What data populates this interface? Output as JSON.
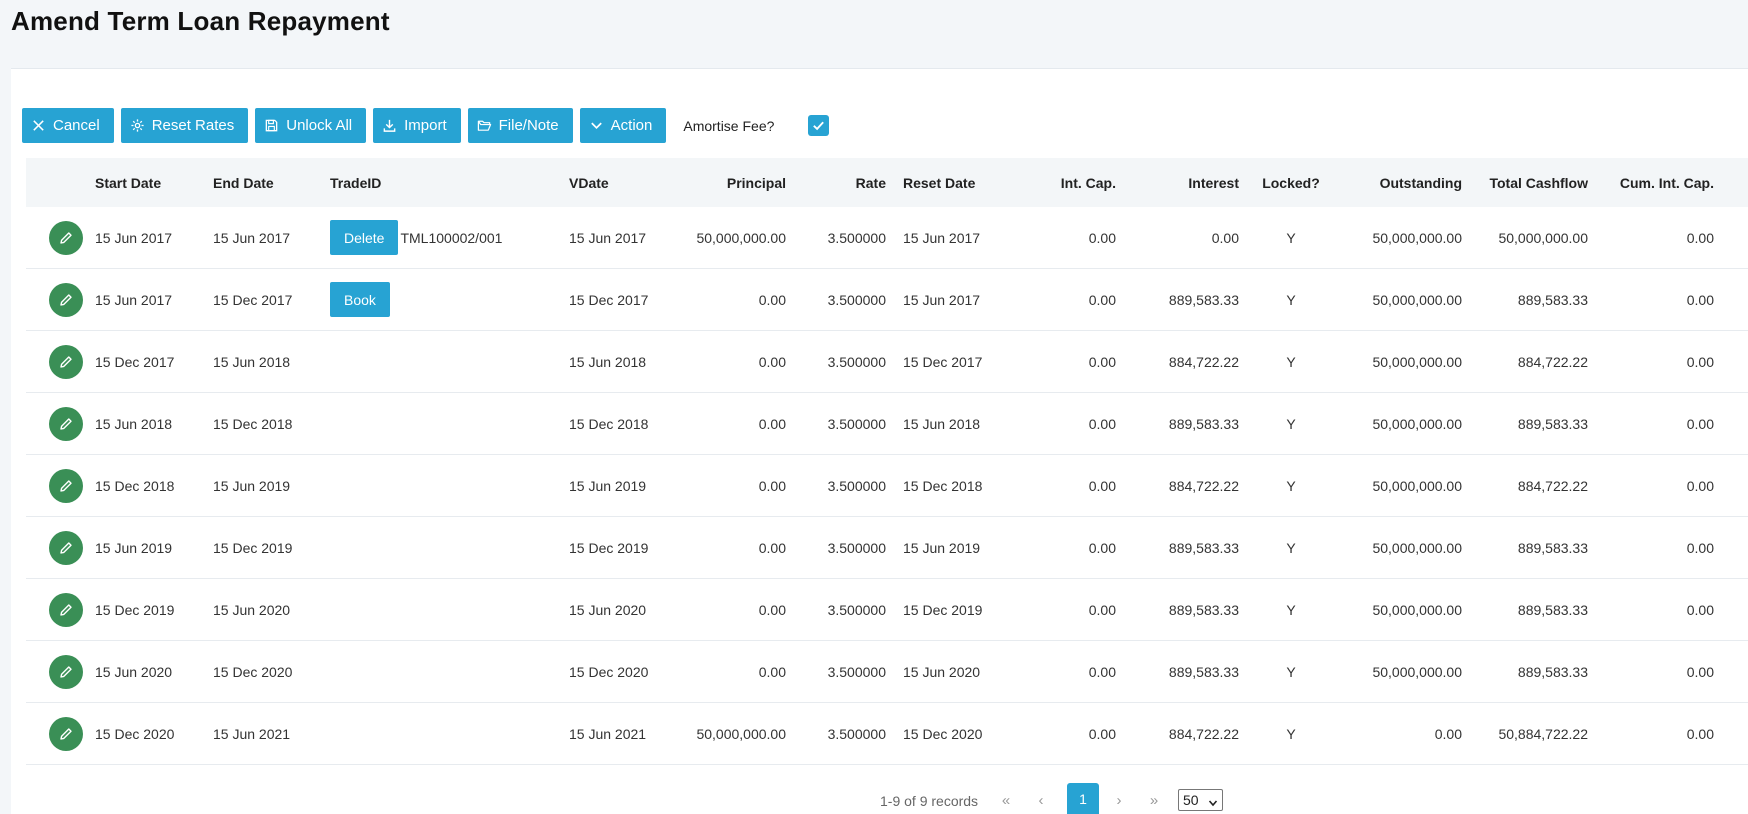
{
  "page": {
    "title": "Amend Term Loan Repayment"
  },
  "toolbar": {
    "cancel": "Cancel",
    "reset_rates": "Reset Rates",
    "unlock_all": "Unlock All",
    "import": "Import",
    "file_note": "File/Note",
    "action": "Action",
    "amortise_label": "Amortise Fee?",
    "amortise_checked": true
  },
  "colors": {
    "accent": "#27a3d3",
    "edit": "#3a8f56",
    "header_bg": "#f3f6f8"
  },
  "columns": {
    "start": "Start Date",
    "end": "End Date",
    "trade": "TradeID",
    "vdate": "VDate",
    "principal": "Principal",
    "rate": "Rate",
    "reset": "Reset Date",
    "intcap": "Int. Cap.",
    "interest": "Interest",
    "locked": "Locked?",
    "outstanding": "Outstanding",
    "total": "Total Cashflow",
    "cum": "Cum. Int. Cap."
  },
  "rows": [
    {
      "start": "15 Jun 2017",
      "end": "15 Jun 2017",
      "trade_button": "Delete",
      "trade_id": "TML100002/001",
      "vdate": "15 Jun 2017",
      "principal": "50,000,000.00",
      "rate": "3.500000",
      "reset": "15 Jun 2017",
      "intcap": "0.00",
      "interest": "0.00",
      "locked": "Y",
      "outstanding": "50,000,000.00",
      "total": "50,000,000.00",
      "cum": "0.00"
    },
    {
      "start": "15 Jun 2017",
      "end": "15 Dec 2017",
      "trade_button": "Book",
      "trade_id": "",
      "vdate": "15 Dec 2017",
      "principal": "0.00",
      "rate": "3.500000",
      "reset": "15 Jun 2017",
      "intcap": "0.00",
      "interest": "889,583.33",
      "locked": "Y",
      "outstanding": "50,000,000.00",
      "total": "889,583.33",
      "cum": "0.00"
    },
    {
      "start": "15 Dec 2017",
      "end": "15 Jun 2018",
      "trade_button": "",
      "trade_id": "",
      "vdate": "15 Jun 2018",
      "principal": "0.00",
      "rate": "3.500000",
      "reset": "15 Dec 2017",
      "intcap": "0.00",
      "interest": "884,722.22",
      "locked": "Y",
      "outstanding": "50,000,000.00",
      "total": "884,722.22",
      "cum": "0.00"
    },
    {
      "start": "15 Jun 2018",
      "end": "15 Dec 2018",
      "trade_button": "",
      "trade_id": "",
      "vdate": "15 Dec 2018",
      "principal": "0.00",
      "rate": "3.500000",
      "reset": "15 Jun 2018",
      "intcap": "0.00",
      "interest": "889,583.33",
      "locked": "Y",
      "outstanding": "50,000,000.00",
      "total": "889,583.33",
      "cum": "0.00"
    },
    {
      "start": "15 Dec 2018",
      "end": "15 Jun 2019",
      "trade_button": "",
      "trade_id": "",
      "vdate": "15 Jun 2019",
      "principal": "0.00",
      "rate": "3.500000",
      "reset": "15 Dec 2018",
      "intcap": "0.00",
      "interest": "884,722.22",
      "locked": "Y",
      "outstanding": "50,000,000.00",
      "total": "884,722.22",
      "cum": "0.00"
    },
    {
      "start": "15 Jun 2019",
      "end": "15 Dec 2019",
      "trade_button": "",
      "trade_id": "",
      "vdate": "15 Dec 2019",
      "principal": "0.00",
      "rate": "3.500000",
      "reset": "15 Jun 2019",
      "intcap": "0.00",
      "interest": "889,583.33",
      "locked": "Y",
      "outstanding": "50,000,000.00",
      "total": "889,583.33",
      "cum": "0.00"
    },
    {
      "start": "15 Dec 2019",
      "end": "15 Jun 2020",
      "trade_button": "",
      "trade_id": "",
      "vdate": "15 Jun 2020",
      "principal": "0.00",
      "rate": "3.500000",
      "reset": "15 Dec 2019",
      "intcap": "0.00",
      "interest": "889,583.33",
      "locked": "Y",
      "outstanding": "50,000,000.00",
      "total": "889,583.33",
      "cum": "0.00"
    },
    {
      "start": "15 Jun 2020",
      "end": "15 Dec 2020",
      "trade_button": "",
      "trade_id": "",
      "vdate": "15 Dec 2020",
      "principal": "0.00",
      "rate": "3.500000",
      "reset": "15 Jun 2020",
      "intcap": "0.00",
      "interest": "889,583.33",
      "locked": "Y",
      "outstanding": "50,000,000.00",
      "total": "889,583.33",
      "cum": "0.00"
    },
    {
      "start": "15 Dec 2020",
      "end": "15 Jun 2021",
      "trade_button": "",
      "trade_id": "",
      "vdate": "15 Jun 2021",
      "principal": "50,000,000.00",
      "rate": "3.500000",
      "reset": "15 Dec 2020",
      "intcap": "0.00",
      "interest": "884,722.22",
      "locked": "Y",
      "outstanding": "0.00",
      "total": "50,884,722.22",
      "cum": "0.00"
    }
  ],
  "pagination": {
    "info": "1-9 of 9 records",
    "current_page": "1",
    "page_size": "50",
    "icons": [
      "first-page-icon",
      "prev-page-icon",
      "next-page-icon",
      "last-page-icon"
    ]
  }
}
